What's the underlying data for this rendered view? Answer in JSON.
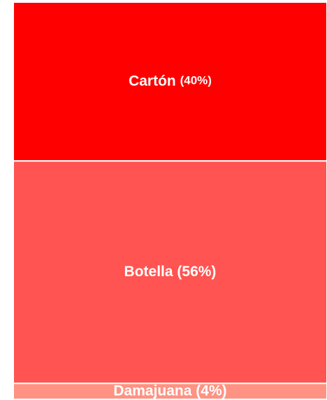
{
  "chart_data": {
    "type": "treemap",
    "categories": [
      "Cartón",
      "Botella",
      "Damajuana"
    ],
    "values": [
      40,
      56,
      4
    ],
    "value_labels": [
      "(40%)",
      "(56%)",
      "(4%)"
    ],
    "colors": [
      "#ff0000",
      "#ff5451",
      "#ff9282"
    ]
  }
}
